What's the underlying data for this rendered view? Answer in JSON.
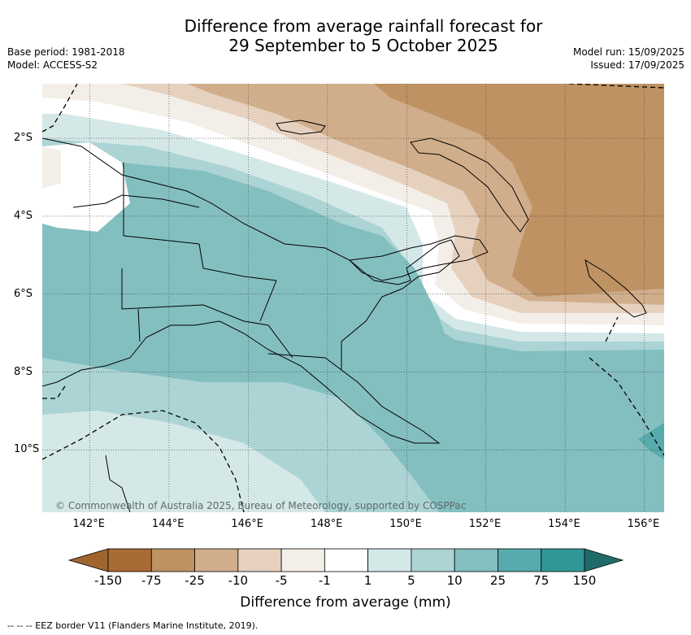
{
  "header": {
    "title_line1": "Difference from average rainfall forecast for",
    "title_line2": "29 September to 5 October 2025",
    "base_period": "Base period: 1981-2018",
    "model": "Model: ACCESS-S2",
    "model_run": "Model run: 15/09/2025",
    "issued": "Issued: 17/09/2025"
  },
  "map": {
    "region": "Papua New Guinea",
    "lon_labels": [
      "142°E",
      "144°E",
      "146°E",
      "148°E",
      "150°E",
      "152°E",
      "154°E",
      "156°E"
    ],
    "lat_labels": [
      "2°S",
      "4°S",
      "6°S",
      "8°S",
      "10°S"
    ],
    "lon_values": [
      142,
      144,
      146,
      148,
      150,
      152,
      154,
      156
    ],
    "lat_values": [
      -2,
      -4,
      -6,
      -8,
      -10
    ],
    "extent": {
      "lon": [
        140.8,
        156.5
      ],
      "lat": [
        -11.6,
        -0.6
      ]
    },
    "copyright": "© Commonwealth of Australia 2025, Bureau of Meteorology, supported by COSPPac"
  },
  "colorbar": {
    "label": "Difference from average (mm)",
    "ticks": [
      "-150",
      "-75",
      "-25",
      "-10",
      "-5",
      "-1",
      "1",
      "5",
      "10",
      "25",
      "75",
      "150"
    ],
    "colors": [
      "#a76b34",
      "#bf9263",
      "#d1ae8b",
      "#e6d1bf",
      "#f3efe8",
      "#ffffff",
      "#d5e8e8",
      "#acd4d4",
      "#84bfc0",
      "#58abac",
      "#2f9896",
      "#1f6f6e"
    ],
    "extend_low_color": "#a0652f",
    "extend_high_color": "#1f6b6a"
  },
  "footer": {
    "legend_text": "--  --  -- EEZ border V11 (Flanders Marine Institute, 2019)."
  }
}
